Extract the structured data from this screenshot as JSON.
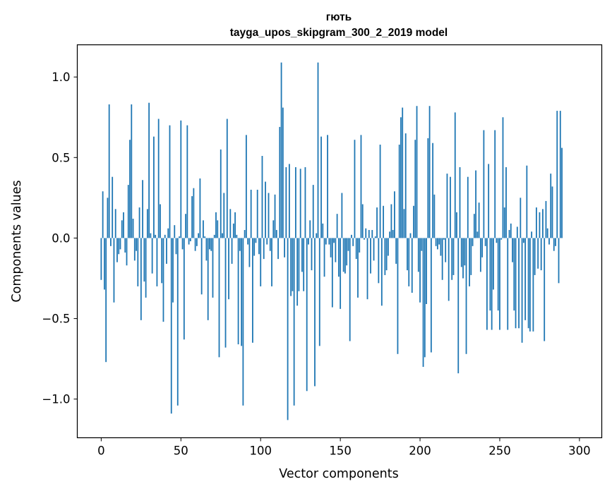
{
  "chart_data": {
    "type": "bar",
    "title": "гють",
    "subtitle": "tayga_upos_skipgram_300_2_2019 model",
    "xlabel": "Vector components",
    "ylabel": "Components values",
    "xlim": [
      -15,
      314
    ],
    "ylim": [
      -1.24,
      1.2
    ],
    "x_ticks": [
      0,
      50,
      100,
      150,
      200,
      250,
      300
    ],
    "x_tick_labels": [
      "0",
      "50",
      "100",
      "150",
      "200",
      "250",
      "300"
    ],
    "y_ticks": [
      -1.0,
      -0.5,
      0.0,
      0.5,
      1.0
    ],
    "y_tick_labels": [
      "−1.0",
      "−0.5",
      "0.0",
      "0.5",
      "1.0"
    ],
    "bar_color": "#1f77b4",
    "grid": false,
    "values": [
      -0.26,
      0.29,
      -0.32,
      -0.77,
      0.25,
      0.83,
      -0.05,
      0.38,
      -0.4,
      0.18,
      -0.15,
      -0.1,
      -0.07,
      0.11,
      0.16,
      -0.09,
      -0.17,
      0.33,
      0.61,
      0.83,
      0.12,
      -0.14,
      -0.08,
      -0.3,
      0.19,
      -0.51,
      0.36,
      -0.27,
      -0.37,
      0.18,
      0.84,
      0.03,
      -0.22,
      0.63,
      0.02,
      -0.3,
      0.74,
      0.21,
      -0.28,
      -0.52,
      0.02,
      -0.16,
      0.06,
      0.7,
      -1.09,
      -0.4,
      0.08,
      -0.1,
      -1.04,
      0.01,
      0.73,
      -0.07,
      -0.63,
      0.15,
      0.7,
      -0.04,
      -0.02,
      0.26,
      0.31,
      -0.08,
      -0.05,
      0.03,
      0.37,
      -0.35,
      0.11,
      0.01,
      -0.14,
      -0.51,
      -0.07,
      -0.08,
      -0.37,
      0.02,
      0.16,
      0.11,
      -0.74,
      0.55,
      0.03,
      0.28,
      -0.68,
      0.74,
      -0.38,
      0.18,
      -0.16,
      0.09,
      0.16,
      0.02,
      -0.66,
      -0.08,
      -0.67,
      -1.04,
      0.05,
      0.64,
      -0.04,
      -0.18,
      0.3,
      -0.65,
      -0.11,
      -0.03,
      0.3,
      -0.1,
      -0.3,
      0.51,
      -0.13,
      0.35,
      -0.04,
      0.28,
      -0.08,
      -0.3,
      0.11,
      0.27,
      0.05,
      -0.13,
      0.69,
      1.09,
      0.81,
      -0.12,
      0.44,
      -1.13,
      0.46,
      -0.36,
      -0.33,
      -1.04,
      0.44,
      -0.42,
      -0.33,
      0.43,
      -0.21,
      -0.33,
      0.44,
      -0.95,
      -0.04,
      0.11,
      -0.2,
      0.33,
      -0.92,
      0.03,
      1.09,
      -0.67,
      0.63,
      0.09,
      -0.24,
      -0.04,
      0.64,
      -0.04,
      -0.12,
      -0.43,
      -0.03,
      -0.15,
      0.15,
      -0.24,
      -0.44,
      0.28,
      -0.21,
      -0.22,
      -0.17,
      -0.08,
      -0.64,
      0.02,
      -0.05,
      0.61,
      -0.13,
      -0.37,
      -0.09,
      0.64,
      0.21,
      -0.01,
      0.06,
      -0.38,
      0.05,
      -0.22,
      0.05,
      -0.14,
      0.01,
      0.19,
      -0.28,
      0.58,
      -0.42,
      0.2,
      -0.23,
      -0.2,
      -0.11,
      0.04,
      0.21,
      0.05,
      0.29,
      -0.16,
      -0.72,
      0.58,
      0.75,
      0.81,
      0.18,
      0.65,
      -0.2,
      -0.3,
      0.03,
      -0.34,
      0.2,
      0.61,
      0.82,
      -0.21,
      -0.4,
      -0.08,
      -0.8,
      -0.74,
      -0.41,
      0.62,
      0.82,
      -0.71,
      0.59,
      0.27,
      -0.05,
      -0.07,
      -0.04,
      -0.11,
      -0.26,
      -0.01,
      -0.15,
      0.4,
      -0.39,
      0.38,
      -0.26,
      -0.23,
      0.78,
      0.16,
      -0.84,
      0.44,
      -0.18,
      -0.25,
      -0.17,
      -0.72,
      0.38,
      -0.3,
      -0.23,
      -0.05,
      0.15,
      0.42,
      0.04,
      0.22,
      -0.21,
      -0.12,
      0.67,
      -0.05,
      -0.57,
      0.46,
      -0.45,
      -0.57,
      -0.32,
      0.67,
      -0.03,
      -0.45,
      -0.57,
      -0.01,
      0.75,
      0.19,
      0.44,
      -0.57,
      0.05,
      0.09,
      -0.15,
      -0.45,
      -0.56,
      0.07,
      -0.56,
      0.25,
      -0.65,
      -0.03,
      -0.51,
      0.45,
      -0.56,
      -0.58,
      0.04,
      -0.58,
      -0.23,
      0.19,
      -0.19,
      0.16,
      -0.2,
      0.18,
      -0.64,
      0.23,
      0.06,
      -0.04,
      0.4,
      0.32,
      -0.08,
      -0.05,
      0.79,
      -0.28,
      0.79,
      0.56
    ]
  }
}
